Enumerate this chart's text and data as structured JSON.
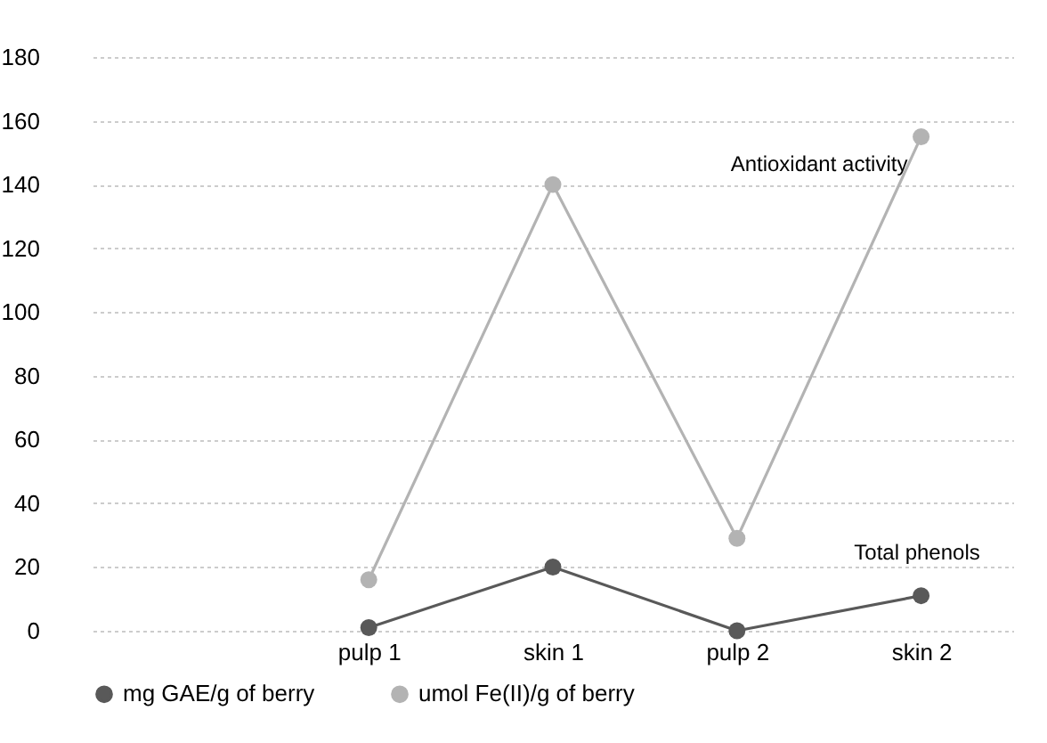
{
  "chart_data": {
    "type": "line",
    "categories": [
      null,
      "pulp 1",
      "skin 1",
      "pulp 2",
      "skin 2"
    ],
    "series": [
      {
        "name": "mg GAE/g of berry",
        "color": "#595959",
        "values": [
          null,
          1,
          20,
          0,
          11
        ]
      },
      {
        "name": "umol  Fe(II)/g of berry",
        "color": "#b3b3b3",
        "values": [
          null,
          16,
          140,
          29,
          155
        ]
      }
    ],
    "ylim": [
      0,
      180
    ],
    "yticks": [
      0,
      20,
      40,
      60,
      80,
      100,
      120,
      140,
      160,
      180
    ],
    "annotations": [
      "Antioxidant activity",
      "Total phenols"
    ],
    "grid": "y",
    "legend": "bottom",
    "marker": "circle",
    "line_style": "solid"
  }
}
